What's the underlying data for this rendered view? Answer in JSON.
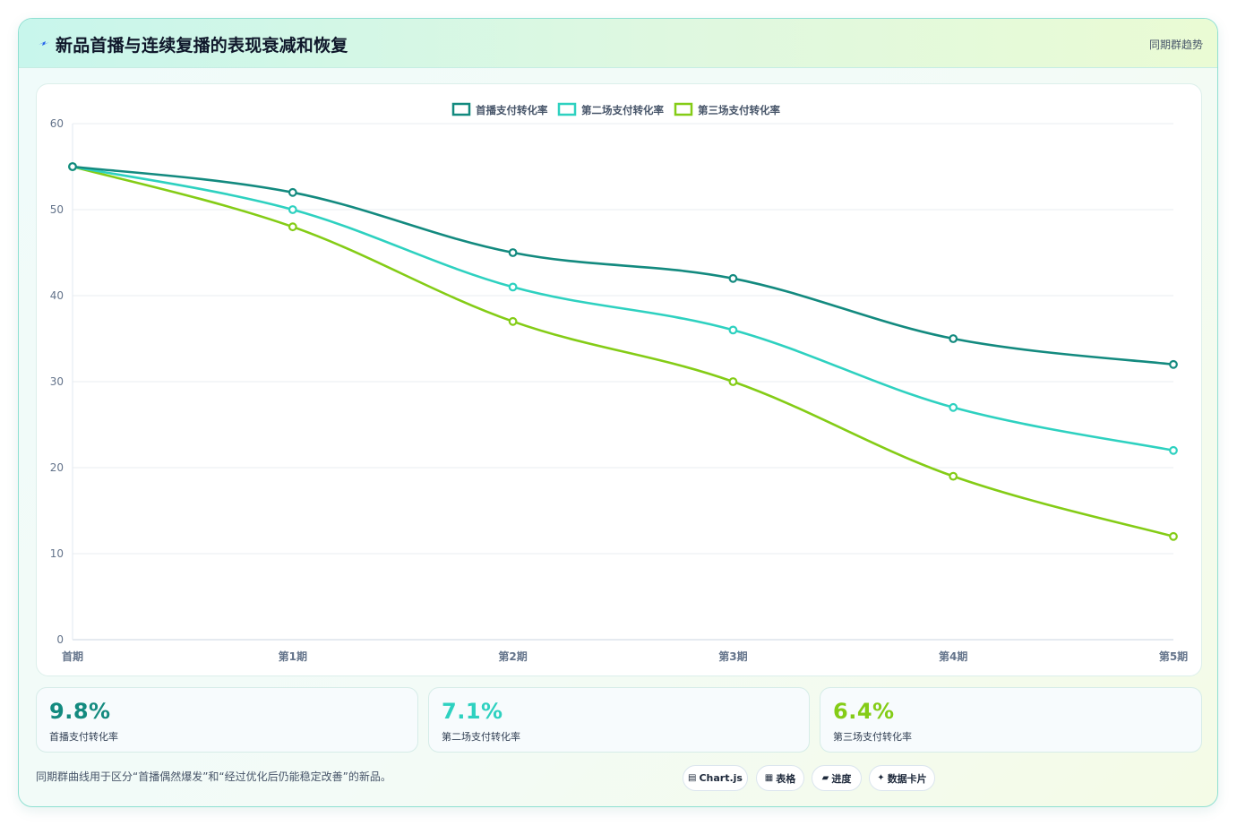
{
  "header": {
    "title": "新品首播与连续复播的表现衰减和恢复",
    "tag": "同期群趋势",
    "icon": "bolt-icon"
  },
  "chart_data": {
    "type": "line",
    "title": "",
    "xlabel": "",
    "ylabel": "",
    "categories": [
      "首期",
      "第1期",
      "第2期",
      "第3期",
      "第4期",
      "第5期"
    ],
    "ylim": [
      0,
      60
    ],
    "yticks": [
      0,
      10,
      20,
      30,
      40,
      50,
      60
    ],
    "grid": true,
    "legend_position": "top-center",
    "series": [
      {
        "name": "首播支付转化率",
        "color": "#138a7f",
        "values": [
          55,
          52,
          45,
          42,
          35,
          32
        ]
      },
      {
        "name": "第二场支付转化率",
        "color": "#2ed1c0",
        "values": [
          55,
          50,
          41,
          36,
          27,
          22
        ]
      },
      {
        "name": "第三场支付转化率",
        "color": "#84cc16",
        "values": [
          55,
          48,
          37,
          30,
          19,
          12
        ]
      }
    ]
  },
  "kpis": [
    {
      "value": "9.8%",
      "label": "首播支付转化率",
      "color": "#138a7f"
    },
    {
      "value": "7.1%",
      "label": "第二场支付转化率",
      "color": "#2ed1c0"
    },
    {
      "value": "6.4%",
      "label": "第三场支付转化率",
      "color": "#84cc16"
    }
  ],
  "footer": {
    "note": "同期群曲线用于区分“首播偶然爆发”和“经过优化后仍能稳定改善”的新品。",
    "chips": [
      {
        "label": "Chart.js",
        "icon": "chart-icon",
        "glyph": "▤"
      },
      {
        "label": "表格",
        "icon": "table-icon",
        "glyph": "▦"
      },
      {
        "label": "进度",
        "icon": "progress-icon",
        "glyph": "▰"
      },
      {
        "label": "数据卡片",
        "icon": "sparkle-icon",
        "glyph": "✦"
      }
    ]
  }
}
